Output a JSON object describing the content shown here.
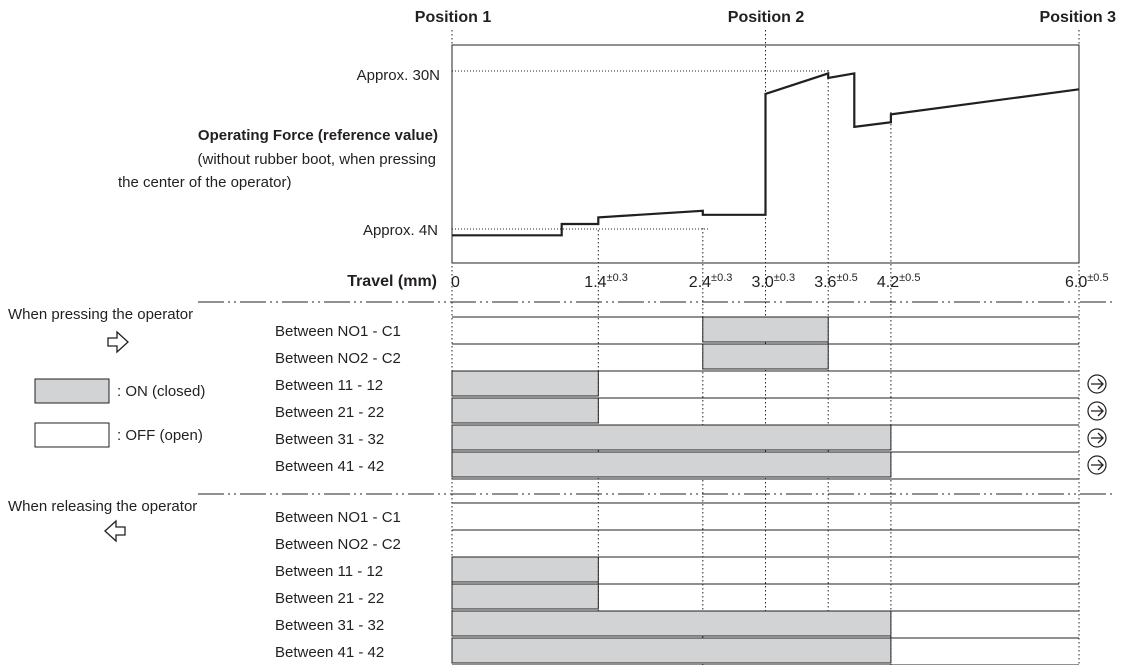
{
  "positions": [
    "Position 1",
    "Position 2",
    "Position 3"
  ],
  "force": {
    "title": "Operating Force (reference value)",
    "subtitle_line1": "(without rubber boot, when pressing",
    "subtitle_line2": "the center of the operator)",
    "high_label": "Approx. 30N",
    "low_label": "Approx. 4N"
  },
  "travel": {
    "label": "Travel (mm)",
    "ticks": [
      {
        "value": "0",
        "tol": ""
      },
      {
        "value": "1.4",
        "tol": "±0.3"
      },
      {
        "value": "2.4",
        "tol": "±0.3"
      },
      {
        "value": "3.0",
        "tol": "±0.3"
      },
      {
        "value": "3.6",
        "tol": "±0.5"
      },
      {
        "value": "4.2",
        "tol": "±0.5"
      },
      {
        "value": "6.0",
        "tol": "±0.5"
      }
    ]
  },
  "legend": {
    "on_label": ": ON (closed)",
    "off_label": ": OFF (open)",
    "on_color": "#d1d3d4",
    "off_color": "#ffffff"
  },
  "pressing": {
    "title": "When pressing the operator",
    "arrow_icon": "right-outline-arrow-icon",
    "rows": [
      {
        "label": "Between NO1 - C1",
        "on_from": 2.4,
        "on_to": 3.6,
        "direct_opening": false
      },
      {
        "label": "Between NO2 - C2",
        "on_from": 2.4,
        "on_to": 3.6,
        "direct_opening": false
      },
      {
        "label": "Between 11 - 12",
        "on_from": 0,
        "on_to": 1.4,
        "direct_opening": true
      },
      {
        "label": "Between 21 - 22",
        "on_from": 0,
        "on_to": 1.4,
        "direct_opening": true
      },
      {
        "label": "Between 31 - 32",
        "on_from": 0,
        "on_to": 4.2,
        "direct_opening": true
      },
      {
        "label": "Between 41 - 42",
        "on_from": 0,
        "on_to": 4.2,
        "direct_opening": true
      }
    ]
  },
  "releasing": {
    "title": "When releasing the operator",
    "arrow_icon": "left-outline-arrow-icon",
    "rows": [
      {
        "label": "Between NO1 - C1",
        "on_from": null,
        "on_to": null
      },
      {
        "label": "Between NO2 - C2",
        "on_from": null,
        "on_to": null
      },
      {
        "label": "Between 11 - 12",
        "on_from": 0,
        "on_to": 1.4
      },
      {
        "label": "Between 21 - 22",
        "on_from": 0,
        "on_to": 1.4
      },
      {
        "label": "Between 31 - 32",
        "on_from": 0,
        "on_to": 4.2
      },
      {
        "label": "Between 41 - 42",
        "on_from": 0,
        "on_to": 4.2
      }
    ]
  },
  "force_curve": [
    [
      0,
      4.2
    ],
    [
      1.05,
      4.2
    ],
    [
      1.05,
      5.9
    ],
    [
      1.4,
      5.9
    ],
    [
      1.4,
      6.9
    ],
    [
      2.4,
      7.9
    ],
    [
      2.4,
      7.3
    ],
    [
      3.0,
      7.3
    ],
    [
      3.0,
      25.6
    ],
    [
      3.6,
      28.7
    ],
    [
      3.6,
      28.0
    ],
    [
      3.85,
      28.7
    ],
    [
      3.85,
      20.6
    ],
    [
      4.2,
      21.3
    ],
    [
      4.2,
      22.5
    ],
    [
      6.0,
      26.3
    ]
  ],
  "colors": {
    "line": "#231f20",
    "on_fill": "#d1d3d4"
  }
}
